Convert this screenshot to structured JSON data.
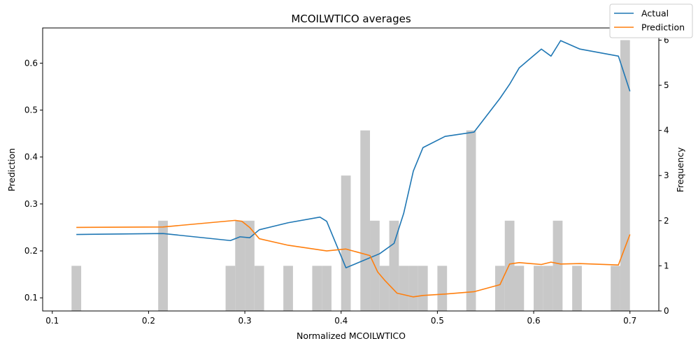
{
  "chart_data": {
    "type": "line",
    "title": "MCOILWTICO averages",
    "xlabel": "Normalized MCOILWTICO",
    "ylabel": "Prediction",
    "y2label": "Frequency",
    "xlim": [
      0.09,
      0.73
    ],
    "ylim": [
      0.072,
      0.675
    ],
    "y2lim": [
      0,
      6.27
    ],
    "xticks": [
      0.1,
      0.2,
      0.3,
      0.4,
      0.5,
      0.6,
      0.7
    ],
    "yticks": [
      0.1,
      0.2,
      0.3,
      0.4,
      0.5,
      0.6
    ],
    "y2ticks": [
      0,
      1,
      2,
      3,
      4,
      5,
      6
    ],
    "grid": false,
    "legend_position": "top-right",
    "series": [
      {
        "name": "Actual",
        "color": "#1f77b4",
        "x": [
          0.125,
          0.215,
          0.285,
          0.295,
          0.305,
          0.315,
          0.345,
          0.378,
          0.385,
          0.405,
          0.44,
          0.455,
          0.465,
          0.475,
          0.485,
          0.508,
          0.538,
          0.565,
          0.575,
          0.585,
          0.608,
          0.618,
          0.628,
          0.648,
          0.688,
          0.7
        ],
        "values": [
          0.235,
          0.237,
          0.222,
          0.23,
          0.228,
          0.245,
          0.26,
          0.272,
          0.263,
          0.164,
          0.194,
          0.216,
          0.28,
          0.37,
          0.42,
          0.444,
          0.453,
          0.525,
          0.555,
          0.59,
          0.63,
          0.615,
          0.648,
          0.63,
          0.615,
          0.54
        ]
      },
      {
        "name": "Prediction",
        "color": "#ff7f0e",
        "x": [
          0.125,
          0.215,
          0.29,
          0.297,
          0.305,
          0.315,
          0.345,
          0.385,
          0.405,
          0.43,
          0.438,
          0.445,
          0.458,
          0.475,
          0.485,
          0.508,
          0.538,
          0.565,
          0.575,
          0.585,
          0.608,
          0.618,
          0.628,
          0.648,
          0.688,
          0.7
        ],
        "values": [
          0.25,
          0.251,
          0.265,
          0.263,
          0.25,
          0.226,
          0.212,
          0.2,
          0.204,
          0.19,
          0.155,
          0.138,
          0.11,
          0.102,
          0.105,
          0.108,
          0.113,
          0.128,
          0.172,
          0.175,
          0.171,
          0.176,
          0.172,
          0.173,
          0.17,
          0.235
        ]
      }
    ],
    "histogram": {
      "name": "Frequency",
      "color": "#c8c8c8",
      "bin_width": 0.01,
      "bins": [
        {
          "x": 0.125,
          "count": 1
        },
        {
          "x": 0.215,
          "count": 2
        },
        {
          "x": 0.285,
          "count": 1
        },
        {
          "x": 0.295,
          "count": 2
        },
        {
          "x": 0.305,
          "count": 2
        },
        {
          "x": 0.315,
          "count": 1
        },
        {
          "x": 0.345,
          "count": 1
        },
        {
          "x": 0.375,
          "count": 1
        },
        {
          "x": 0.385,
          "count": 1
        },
        {
          "x": 0.405,
          "count": 3
        },
        {
          "x": 0.425,
          "count": 4
        },
        {
          "x": 0.435,
          "count": 2
        },
        {
          "x": 0.445,
          "count": 1
        },
        {
          "x": 0.455,
          "count": 2
        },
        {
          "x": 0.465,
          "count": 1
        },
        {
          "x": 0.475,
          "count": 1
        },
        {
          "x": 0.485,
          "count": 1
        },
        {
          "x": 0.505,
          "count": 1
        },
        {
          "x": 0.535,
          "count": 4
        },
        {
          "x": 0.565,
          "count": 1
        },
        {
          "x": 0.575,
          "count": 2
        },
        {
          "x": 0.585,
          "count": 1
        },
        {
          "x": 0.605,
          "count": 1
        },
        {
          "x": 0.615,
          "count": 1
        },
        {
          "x": 0.625,
          "count": 2
        },
        {
          "x": 0.645,
          "count": 1
        },
        {
          "x": 0.685,
          "count": 1
        },
        {
          "x": 0.695,
          "count": 6
        }
      ]
    }
  }
}
